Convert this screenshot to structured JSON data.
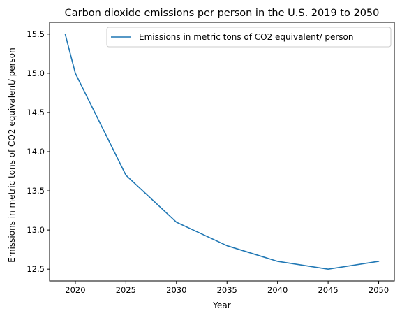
{
  "chart_data": {
    "type": "line",
    "title": "Carbon dioxide emissions per person in the U.S. 2019 to 2050",
    "xlabel": "Year",
    "ylabel": "Emissions in metric tons of CO2 equivalent/ person",
    "xlim": [
      2017.45,
      2051.55
    ],
    "ylim": [
      12.35,
      15.65
    ],
    "x_ticks": [
      2020,
      2025,
      2030,
      2035,
      2040,
      2045,
      2050
    ],
    "x_tick_labels": [
      "2020",
      "2025",
      "2030",
      "2035",
      "2040",
      "2045",
      "2050"
    ],
    "y_ticks": [
      12.5,
      13.0,
      13.5,
      14.0,
      14.5,
      15.0,
      15.5
    ],
    "y_tick_labels": [
      "12.5",
      "13.0",
      "13.5",
      "14.0",
      "14.5",
      "15.0",
      "15.5"
    ],
    "grid": false,
    "legend_position": "top-right",
    "series": [
      {
        "name": "Emissions in metric tons of CO2 equivalent/ person",
        "color": "#1f77b4",
        "x": [
          2019,
          2020,
          2025,
          2030,
          2035,
          2040,
          2045,
          2050
        ],
        "y": [
          15.5,
          15.0,
          13.7,
          13.1,
          12.8,
          12.6,
          12.5,
          12.6
        ]
      }
    ]
  }
}
